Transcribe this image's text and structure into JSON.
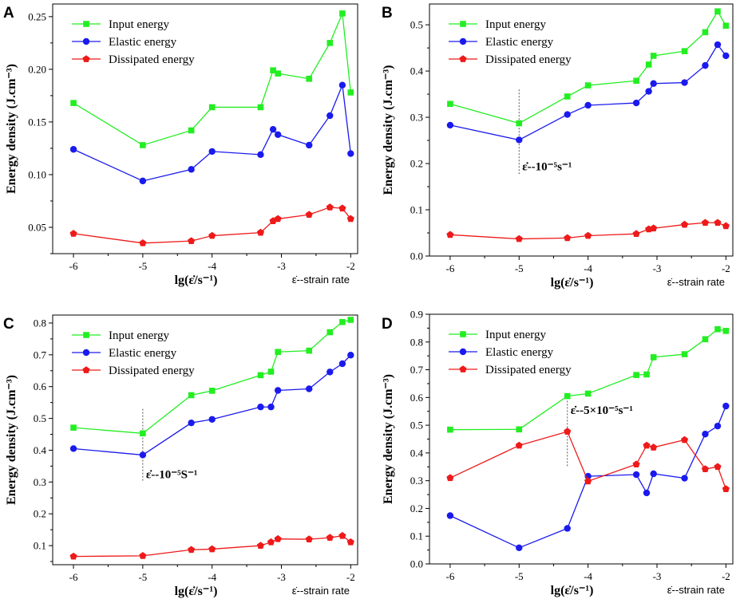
{
  "figure": {
    "x_label": "lg(ε̇/s⁻¹)",
    "x_side_label": "ε̇--strain rate",
    "y_label": "Energy density (J.cm⁻³)"
  },
  "chart_data": [
    {
      "type": "line",
      "panel": "A",
      "xlim": [
        -6.3,
        -1.9
      ],
      "ylim": [
        0.025,
        0.262
      ],
      "x_ticks": [
        -6,
        -5,
        -4,
        -3,
        -2
      ],
      "x_tick_labels": [
        "-6",
        "-5",
        "-4",
        "-3",
        "-2"
      ],
      "y_ticks": [
        0.05,
        0.1,
        0.15,
        0.2,
        0.25
      ],
      "y_tick_labels": [
        "0.05",
        "0.10",
        "0.15",
        "0.20",
        "0.25"
      ],
      "x": [
        -6,
        -5,
        -4.3,
        -4,
        -3.3,
        -3.12,
        -3.05,
        -2.6,
        -2.3,
        -2.12,
        -2
      ],
      "series": [
        {
          "name": "Input energy",
          "color": "#22ee22",
          "marker": "square",
          "values": [
            0.168,
            0.128,
            0.142,
            0.164,
            0.164,
            0.199,
            0.196,
            0.191,
            0.225,
            0.253,
            0.178
          ]
        },
        {
          "name": "Elastic energy",
          "color": "#1a1aee",
          "marker": "circle",
          "values": [
            0.124,
            0.094,
            0.105,
            0.122,
            0.119,
            0.143,
            0.138,
            0.128,
            0.156,
            0.185,
            0.12
          ]
        },
        {
          "name": "Dissipated energy",
          "color": "#ee1a1a",
          "marker": "pentagon",
          "values": [
            0.044,
            0.035,
            0.037,
            0.042,
            0.045,
            0.056,
            0.058,
            0.062,
            0.069,
            0.068,
            0.058
          ]
        }
      ],
      "annotation": null
    },
    {
      "type": "line",
      "panel": "B",
      "xlim": [
        -6.3,
        -1.9
      ],
      "ylim": [
        0,
        0.545
      ],
      "x_ticks": [
        -6,
        -5,
        -4,
        -3,
        -2
      ],
      "x_tick_labels": [
        "-6",
        "-5",
        "-4",
        "-3",
        "-2"
      ],
      "y_ticks": [
        0.0,
        0.1,
        0.2,
        0.3,
        0.4,
        0.5
      ],
      "y_tick_labels": [
        "0.0",
        "0.1",
        "0.2",
        "0.3",
        "0.4",
        "0.5"
      ],
      "x": [
        -6,
        -5,
        -4.3,
        -4,
        -3.3,
        -3.12,
        -3.05,
        -2.6,
        -2.3,
        -2.12,
        -2
      ],
      "series": [
        {
          "name": "Input energy",
          "color": "#22ee22",
          "marker": "square",
          "values": [
            0.329,
            0.287,
            0.345,
            0.369,
            0.379,
            0.414,
            0.433,
            0.443,
            0.484,
            0.529,
            0.498
          ]
        },
        {
          "name": "Elastic energy",
          "color": "#1a1aee",
          "marker": "circle",
          "values": [
            0.283,
            0.251,
            0.306,
            0.326,
            0.331,
            0.356,
            0.373,
            0.375,
            0.412,
            0.457,
            0.433
          ]
        },
        {
          "name": "Dissipated energy",
          "color": "#ee1a1a",
          "marker": "pentagon",
          "values": [
            0.046,
            0.037,
            0.039,
            0.044,
            0.048,
            0.058,
            0.06,
            0.068,
            0.072,
            0.072,
            0.065
          ]
        }
      ],
      "annotation": {
        "x": -5,
        "label": "ε̇--10⁻⁵s⁻¹",
        "line_top": 0.36,
        "line_bottom": 0.175
      }
    },
    {
      "type": "line",
      "panel": "C",
      "xlim": [
        -6.3,
        -1.9
      ],
      "ylim": [
        0.04,
        0.825
      ],
      "x_ticks": [
        -6,
        -5,
        -4,
        -3,
        -2
      ],
      "x_tick_labels": [
        "-6",
        "-5",
        "-4",
        "-3",
        "-2"
      ],
      "y_ticks": [
        0.1,
        0.2,
        0.3,
        0.4,
        0.5,
        0.6,
        0.7,
        0.8
      ],
      "y_tick_labels": [
        "0.1",
        "0.2",
        "0.3",
        "0.4",
        "0.5",
        "0.6",
        "0.7",
        "0.8"
      ],
      "x": [
        -6,
        -5,
        -4.3,
        -4,
        -3.3,
        -3.15,
        -3.05,
        -2.6,
        -2.3,
        -2.12,
        -2
      ],
      "series": [
        {
          "name": "Input energy",
          "color": "#22ee22",
          "marker": "square",
          "values": [
            0.471,
            0.453,
            0.573,
            0.587,
            0.636,
            0.647,
            0.709,
            0.713,
            0.771,
            0.803,
            0.81
          ]
        },
        {
          "name": "Elastic energy",
          "color": "#1a1aee",
          "marker": "circle",
          "values": [
            0.405,
            0.385,
            0.486,
            0.497,
            0.536,
            0.536,
            0.588,
            0.593,
            0.646,
            0.672,
            0.699
          ]
        },
        {
          "name": "Dissipated energy",
          "color": "#ee1a1a",
          "marker": "pentagon",
          "values": [
            0.066,
            0.068,
            0.087,
            0.089,
            0.1,
            0.111,
            0.121,
            0.12,
            0.125,
            0.131,
            0.111
          ]
        }
      ],
      "annotation": {
        "x": -5,
        "label": "ε̇--10⁻⁵S⁻¹",
        "line_top": 0.53,
        "line_bottom": 0.3
      }
    },
    {
      "type": "line",
      "panel": "D",
      "xlim": [
        -6.3,
        -1.9
      ],
      "ylim": [
        0,
        0.9
      ],
      "x_ticks": [
        -6,
        -5,
        -4,
        -3,
        -2
      ],
      "x_tick_labels": [
        "-6",
        "-5",
        "-4",
        "-3",
        "-2"
      ],
      "y_ticks": [
        0.0,
        0.1,
        0.2,
        0.3,
        0.4,
        0.5,
        0.6,
        0.7,
        0.8,
        0.9
      ],
      "y_tick_labels": [
        "0.0",
        "0.1",
        "0.2",
        "0.3",
        "0.4",
        "0.5",
        "0.6",
        "0.7",
        "0.8",
        "0.9"
      ],
      "x": [
        -6,
        -5,
        -4.3,
        -4,
        -3.3,
        -3.15,
        -3.05,
        -2.6,
        -2.3,
        -2.12,
        -2
      ],
      "series": [
        {
          "name": "Input energy",
          "color": "#22ee22",
          "marker": "square",
          "values": [
            0.484,
            0.485,
            0.605,
            0.614,
            0.681,
            0.683,
            0.745,
            0.756,
            0.81,
            0.846,
            0.84
          ]
        },
        {
          "name": "Elastic energy",
          "color": "#1a1aee",
          "marker": "circle",
          "values": [
            0.174,
            0.058,
            0.128,
            0.316,
            0.322,
            0.256,
            0.325,
            0.309,
            0.468,
            0.497,
            0.569
          ]
        },
        {
          "name": "Dissipated energy",
          "color": "#ee1a1a",
          "marker": "pentagon",
          "values": [
            0.31,
            0.427,
            0.477,
            0.298,
            0.359,
            0.427,
            0.42,
            0.447,
            0.342,
            0.35,
            0.27
          ]
        }
      ],
      "annotation": {
        "x": -4.3,
        "label": "ε̇--5×10⁻⁵s⁻¹",
        "line_top": 0.6,
        "line_bottom": 0.35
      }
    }
  ]
}
